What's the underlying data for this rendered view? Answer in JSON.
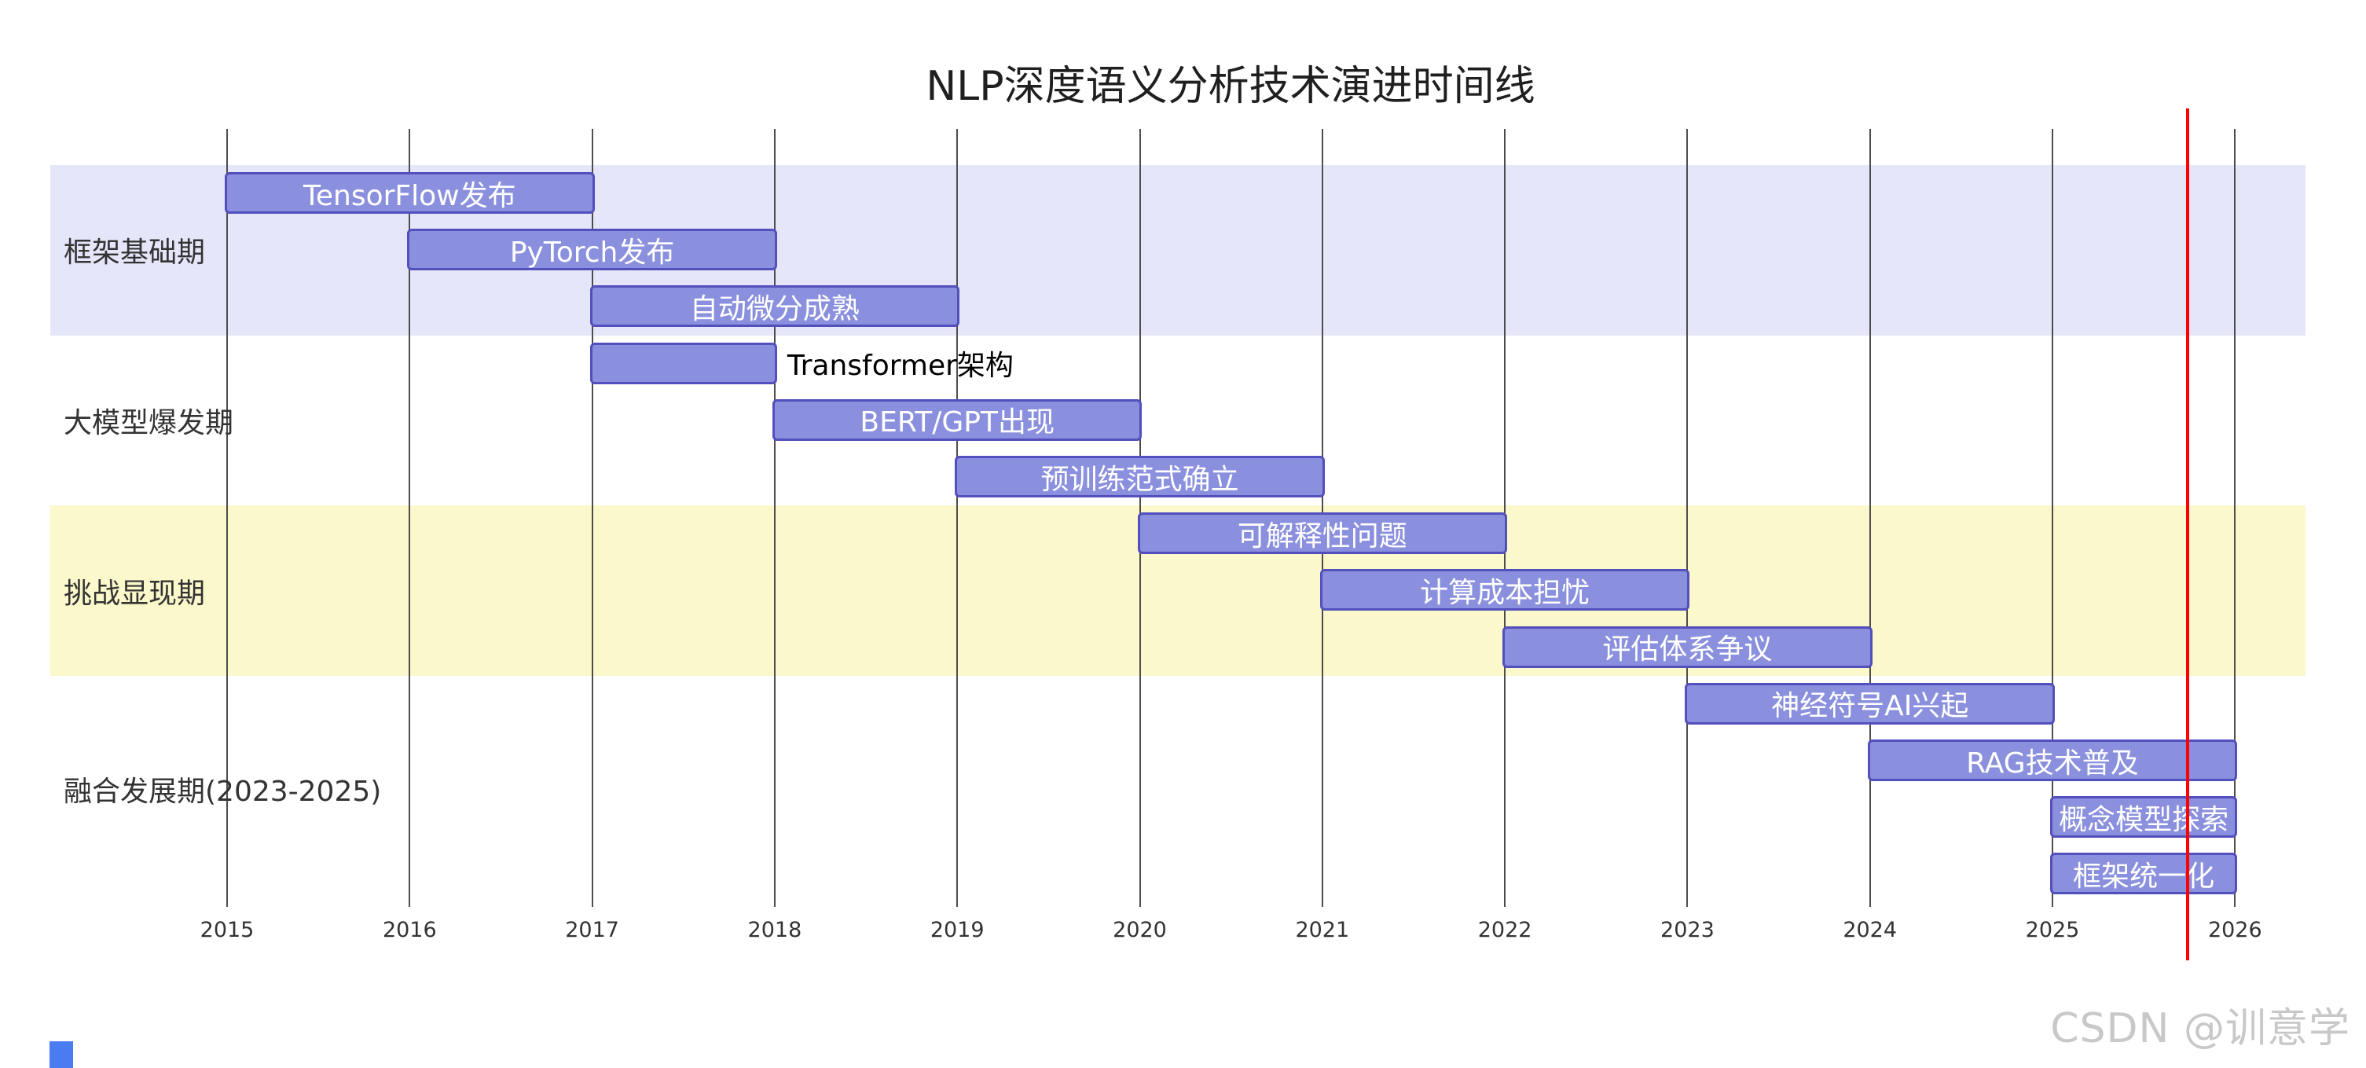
{
  "page": {
    "title": "NLP深度语义分析技术演进时间线",
    "watermark": "CSDN @训意学"
  },
  "colors": {
    "title_text": "#1f1f1f",
    "axis_text": "#333333",
    "section_label_text": "#333333",
    "grid_line": "#4d4d4d",
    "task_fill": "#8a90dd",
    "task_border": "#534fbc",
    "task_text": "#ffffff",
    "outside_task_text": "#000000",
    "today_line": "#ff0000",
    "watermark_text": "#c8c8c8",
    "corner_fragment": "#4a7bf0"
  },
  "chart_data": {
    "type": "gantt",
    "title": "NLP深度语义分析技术演进时间线",
    "orientation": "horizontal",
    "grid": true,
    "legend": false,
    "x_axis": {
      "unit": "year",
      "range": [
        2015,
        2026
      ],
      "ticks": [
        2015,
        2016,
        2017,
        2018,
        2019,
        2020,
        2021,
        2022,
        2023,
        2024,
        2025,
        2026
      ]
    },
    "today_marker": 2025.74,
    "sections": [
      {
        "label": "框架基础期",
        "band_color": "#e6e6fa",
        "tasks": [
          {
            "label": "TensorFlow发布",
            "start": 2015,
            "end": 2017,
            "label_position": "inside"
          },
          {
            "label": "PyTorch发布",
            "start": 2016,
            "end": 2018,
            "label_position": "inside"
          },
          {
            "label": "自动微分成熟",
            "start": 2017,
            "end": 2019,
            "label_position": "inside"
          }
        ]
      },
      {
        "label": "大模型爆发期",
        "band_color": "#ffffff",
        "tasks": [
          {
            "label": "Transformer架构",
            "start": 2017,
            "end": 2018,
            "label_position": "outside-right"
          },
          {
            "label": "BERT/GPT出现",
            "start": 2018,
            "end": 2020,
            "label_position": "inside"
          },
          {
            "label": "预训练范式确立",
            "start": 2019,
            "end": 2021,
            "label_position": "inside"
          }
        ]
      },
      {
        "label": "挑战显现期",
        "band_color": "#fbf8cb",
        "tasks": [
          {
            "label": "可解释性问题",
            "start": 2020,
            "end": 2022,
            "label_position": "inside"
          },
          {
            "label": "计算成本担忧",
            "start": 2021,
            "end": 2023,
            "label_position": "inside"
          },
          {
            "label": "评估体系争议",
            "start": 2022,
            "end": 2024,
            "label_position": "inside"
          }
        ]
      },
      {
        "label": "融合发展期(2023-2025)",
        "band_color": "#ffffff",
        "tasks": [
          {
            "label": "神经符号AI兴起",
            "start": 2023,
            "end": 2025,
            "label_position": "inside"
          },
          {
            "label": "RAG技术普及",
            "start": 2024,
            "end": 2026,
            "label_position": "inside"
          },
          {
            "label": "概念模型探索",
            "start": 2025,
            "end": 2026,
            "label_position": "inside"
          },
          {
            "label": "框架统一化",
            "start": 2025,
            "end": 2026,
            "label_position": "inside"
          }
        ]
      }
    ]
  }
}
